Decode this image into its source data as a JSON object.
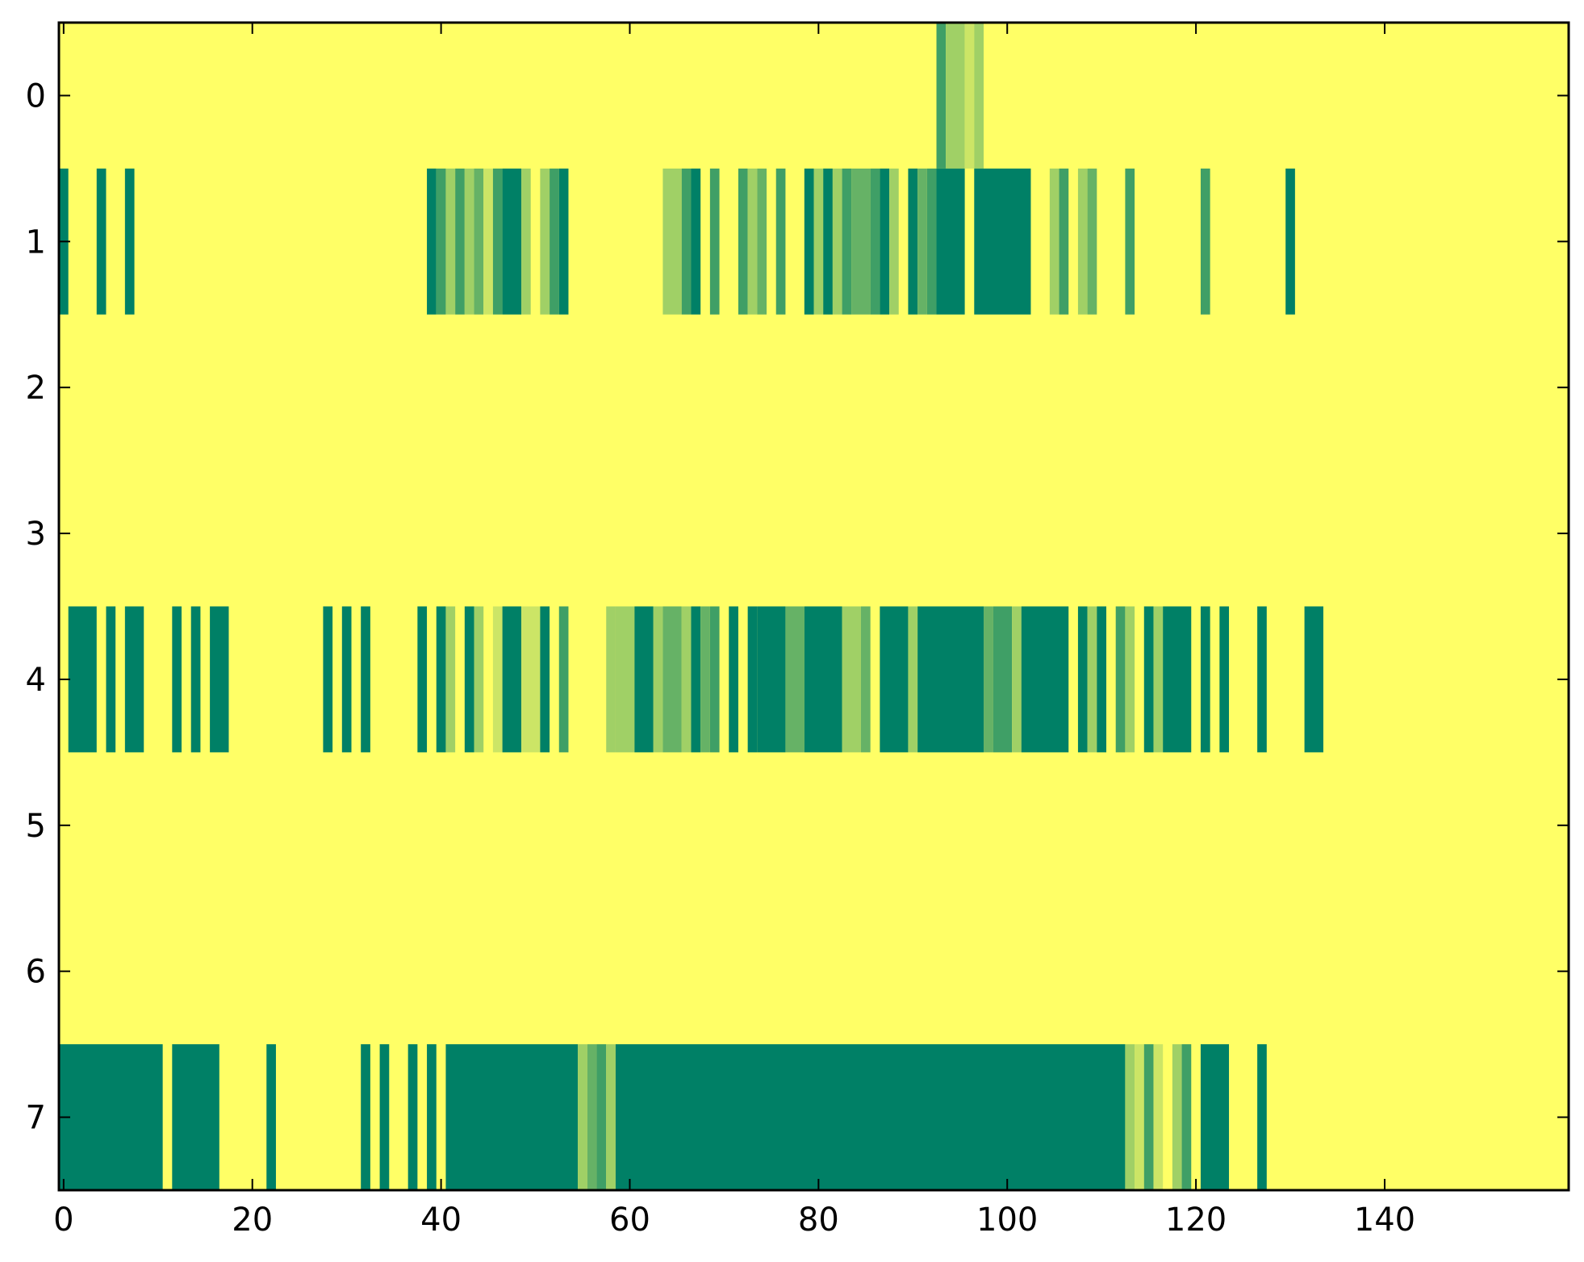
{
  "chart_data": {
    "type": "heatmap",
    "title": "",
    "xlabel": "",
    "ylabel": "",
    "xlim": [
      -0.5,
      159.5
    ],
    "ylim": [
      7.5,
      -0.5
    ],
    "n_cols": 160,
    "n_rows": 8,
    "xticks": [
      0,
      20,
      40,
      60,
      80,
      100,
      120,
      140
    ],
    "xtick_labels": [
      "0",
      "20",
      "40",
      "60",
      "80",
      "100",
      "120",
      "140"
    ],
    "yticks": [
      0,
      1,
      2,
      3,
      4,
      5,
      6,
      7
    ],
    "ytick_labels": [
      "0",
      "1",
      "2",
      "3",
      "4",
      "5",
      "6",
      "7"
    ],
    "colormap": "summer_r",
    "colors": {
      "background": "#FFFF66",
      "1": "#008066",
      "2": "#3F9F66",
      "3": "#66B266",
      "4": "#A0D066",
      "5": "#CCE566",
      "frame": "#000000"
    },
    "default_value": 0,
    "cells": [
      {
        "row": 0,
        "segments": [
          [
            93,
            94,
            2
          ],
          [
            94,
            96,
            4
          ],
          [
            96,
            97,
            5
          ],
          [
            97,
            98,
            4
          ]
        ]
      },
      {
        "row": 1,
        "segments": [
          [
            0,
            1,
            1
          ],
          [
            4,
            5,
            1
          ],
          [
            7,
            8,
            1
          ],
          [
            39,
            40,
            1
          ],
          [
            40,
            41,
            2
          ],
          [
            41,
            42,
            4
          ],
          [
            42,
            43,
            2
          ],
          [
            43,
            44,
            4
          ],
          [
            44,
            45,
            3
          ],
          [
            45,
            46,
            5
          ],
          [
            46,
            47,
            2
          ],
          [
            47,
            49,
            1
          ],
          [
            49,
            50,
            4
          ],
          [
            51,
            52,
            4
          ],
          [
            52,
            53,
            2
          ],
          [
            53,
            54,
            1
          ],
          [
            64,
            66,
            4
          ],
          [
            66,
            67,
            2
          ],
          [
            67,
            68,
            1
          ],
          [
            69,
            70,
            2
          ],
          [
            72,
            73,
            2
          ],
          [
            73,
            74,
            4
          ],
          [
            74,
            75,
            3
          ],
          [
            76,
            77,
            2
          ],
          [
            79,
            80,
            1
          ],
          [
            80,
            81,
            4
          ],
          [
            81,
            82,
            1
          ],
          [
            82,
            83,
            4
          ],
          [
            83,
            84,
            2
          ],
          [
            84,
            86,
            3
          ],
          [
            86,
            87,
            2
          ],
          [
            87,
            88,
            1
          ],
          [
            88,
            89,
            4
          ],
          [
            90,
            91,
            1
          ],
          [
            91,
            92,
            3
          ],
          [
            92,
            93,
            2
          ],
          [
            93,
            96,
            1
          ],
          [
            97,
            103,
            1
          ],
          [
            105,
            106,
            4
          ],
          [
            106,
            107,
            2
          ],
          [
            108,
            109,
            4
          ],
          [
            109,
            110,
            3
          ],
          [
            113,
            114,
            2
          ],
          [
            121,
            122,
            2
          ],
          [
            130,
            131,
            1
          ]
        ]
      },
      {
        "row": 2,
        "segments": []
      },
      {
        "row": 3,
        "segments": []
      },
      {
        "row": 4,
        "segments": [
          [
            1,
            4,
            1
          ],
          [
            5,
            6,
            1
          ],
          [
            7,
            9,
            1
          ],
          [
            12,
            13,
            1
          ],
          [
            14,
            15,
            1
          ],
          [
            16,
            18,
            1
          ],
          [
            28,
            29,
            1
          ],
          [
            30,
            31,
            1
          ],
          [
            32,
            33,
            1
          ],
          [
            38,
            39,
            1
          ],
          [
            40,
            41,
            1
          ],
          [
            41,
            42,
            4
          ],
          [
            43,
            44,
            1
          ],
          [
            44,
            45,
            4
          ],
          [
            46,
            47,
            5
          ],
          [
            47,
            49,
            1
          ],
          [
            49,
            51,
            5
          ],
          [
            51,
            52,
            1
          ],
          [
            53,
            54,
            2
          ],
          [
            58,
            59,
            4
          ],
          [
            59,
            61,
            4
          ],
          [
            61,
            63,
            1
          ],
          [
            63,
            64,
            4
          ],
          [
            64,
            66,
            3
          ],
          [
            66,
            67,
            4
          ],
          [
            67,
            68,
            1
          ],
          [
            68,
            69,
            3
          ],
          [
            69,
            70,
            2
          ],
          [
            71,
            72,
            1
          ],
          [
            73,
            74,
            1
          ],
          [
            74,
            77,
            1
          ],
          [
            77,
            79,
            3
          ],
          [
            79,
            83,
            1
          ],
          [
            83,
            85,
            4
          ],
          [
            85,
            86,
            3
          ],
          [
            87,
            90,
            1
          ],
          [
            90,
            91,
            4
          ],
          [
            91,
            98,
            1
          ],
          [
            98,
            99,
            3
          ],
          [
            99,
            101,
            2
          ],
          [
            101,
            102,
            4
          ],
          [
            102,
            107,
            1
          ],
          [
            108,
            109,
            1
          ],
          [
            109,
            110,
            4
          ],
          [
            110,
            111,
            1
          ],
          [
            112,
            113,
            2
          ],
          [
            113,
            114,
            4
          ],
          [
            115,
            116,
            1
          ],
          [
            116,
            117,
            4
          ],
          [
            117,
            120,
            1
          ],
          [
            121,
            122,
            1
          ],
          [
            123,
            124,
            1
          ],
          [
            127,
            128,
            1
          ],
          [
            132,
            134,
            1
          ]
        ]
      },
      {
        "row": 5,
        "segments": []
      },
      {
        "row": 6,
        "segments": []
      },
      {
        "row": 7,
        "segments": [
          [
            -0.5,
            11,
            1
          ],
          [
            12,
            17,
            1
          ],
          [
            22,
            23,
            1
          ],
          [
            32,
            33,
            1
          ],
          [
            34,
            35,
            1
          ],
          [
            37,
            38,
            1
          ],
          [
            39,
            40,
            1
          ],
          [
            41,
            55,
            1
          ],
          [
            55,
            56,
            4
          ],
          [
            56,
            57,
            3
          ],
          [
            57,
            58,
            2
          ],
          [
            58,
            59,
            4
          ],
          [
            59,
            113,
            1
          ],
          [
            113,
            114,
            4
          ],
          [
            114,
            115,
            5
          ],
          [
            115,
            116,
            2
          ],
          [
            116,
            117,
            5
          ],
          [
            118,
            119,
            4
          ],
          [
            119,
            120,
            2
          ],
          [
            121,
            124,
            1
          ],
          [
            127,
            128,
            1
          ]
        ]
      }
    ]
  }
}
